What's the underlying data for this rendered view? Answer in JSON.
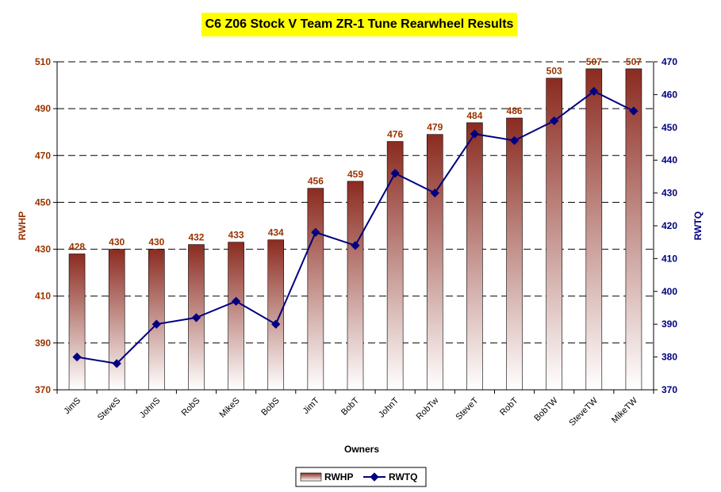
{
  "chart_data": {
    "type": "bar",
    "title": "C6 Z06 Stock V Team ZR-1 Tune Rearwheel Results",
    "xlabel": "Owners",
    "ylabel": "RWHP",
    "y2label": "RWTQ",
    "categories": [
      "JimS",
      "SteveS",
      "JohnS",
      "RobS",
      "MikeS",
      "BobS",
      "JimT",
      "BobT",
      "JohnT",
      "RobTw",
      "SteveT",
      "RobT",
      "BobTW",
      "SteveTW",
      "MikeTW"
    ],
    "series": [
      {
        "name": "RWHP",
        "type": "bar",
        "axis": "left",
        "values": [
          428,
          430,
          430,
          432,
          433,
          434,
          456,
          459,
          476,
          479,
          484,
          486,
          503,
          507,
          507
        ]
      },
      {
        "name": "RWTQ",
        "type": "line",
        "axis": "right",
        "values": [
          380,
          378,
          390,
          392,
          397,
          390,
          418,
          414,
          436,
          430,
          448,
          446,
          452,
          461,
          455
        ]
      }
    ],
    "ylim": [
      370,
      510
    ],
    "yticks": [
      370,
      390,
      410,
      430,
      450,
      470,
      490,
      510
    ],
    "y2lim": [
      370,
      470
    ],
    "y2ticks": [
      370,
      380,
      390,
      400,
      410,
      420,
      430,
      440,
      450,
      460,
      470
    ],
    "grid": "horizontal dashed",
    "legend_position": "bottom",
    "colors": {
      "bar_dark": "#8b2b20",
      "bar_light": "#ffffff",
      "line": "#000080",
      "left_axis_text": "#993300",
      "right_axis_text": "#000080",
      "data_label": "#993300",
      "title_bg": "#ffff00"
    }
  }
}
